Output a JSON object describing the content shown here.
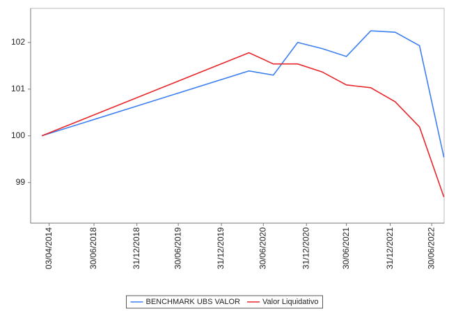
{
  "chart_data": {
    "type": "line",
    "x": [
      0,
      8.5,
      9.5,
      10.5,
      11.5,
      12.5,
      13.5,
      14.5,
      15.5,
      16.5
    ],
    "series": [
      {
        "name": "BENCHMARK UBS VALOR",
        "color": "#3c7ff0",
        "values": [
          100,
          101.39,
          101.3,
          102.0,
          101.87,
          101.7,
          102.25,
          102.22,
          101.93,
          99.54
        ]
      },
      {
        "name": "Valor Liquidativo",
        "color": "#e8262a",
        "values": [
          100,
          101.78,
          101.54,
          101.54,
          101.37,
          101.09,
          101.03,
          100.73,
          100.19,
          98.69
        ]
      }
    ],
    "xlim": [
      -0.46,
      16.51
    ],
    "ylim": [
      98.13,
      102.73
    ],
    "yticks": [
      99,
      100,
      101,
      102
    ],
    "xticks": [
      {
        "value": 0.3,
        "label": "03/04/2014"
      },
      {
        "value": 2.14,
        "label": "30/06/2018"
      },
      {
        "value": 3.9,
        "label": "31/12/2018"
      },
      {
        "value": 5.6,
        "label": "30/06/2019"
      },
      {
        "value": 7.37,
        "label": "31/12/2019"
      },
      {
        "value": 9.09,
        "label": "30/06/2020"
      },
      {
        "value": 10.86,
        "label": "31/12/2020"
      },
      {
        "value": 12.5,
        "label": "30/06/2021"
      },
      {
        "value": 14.3,
        "label": "31/12/2021"
      },
      {
        "value": 16.0,
        "label": "30/06/2022"
      }
    ],
    "legend": "bottom"
  }
}
